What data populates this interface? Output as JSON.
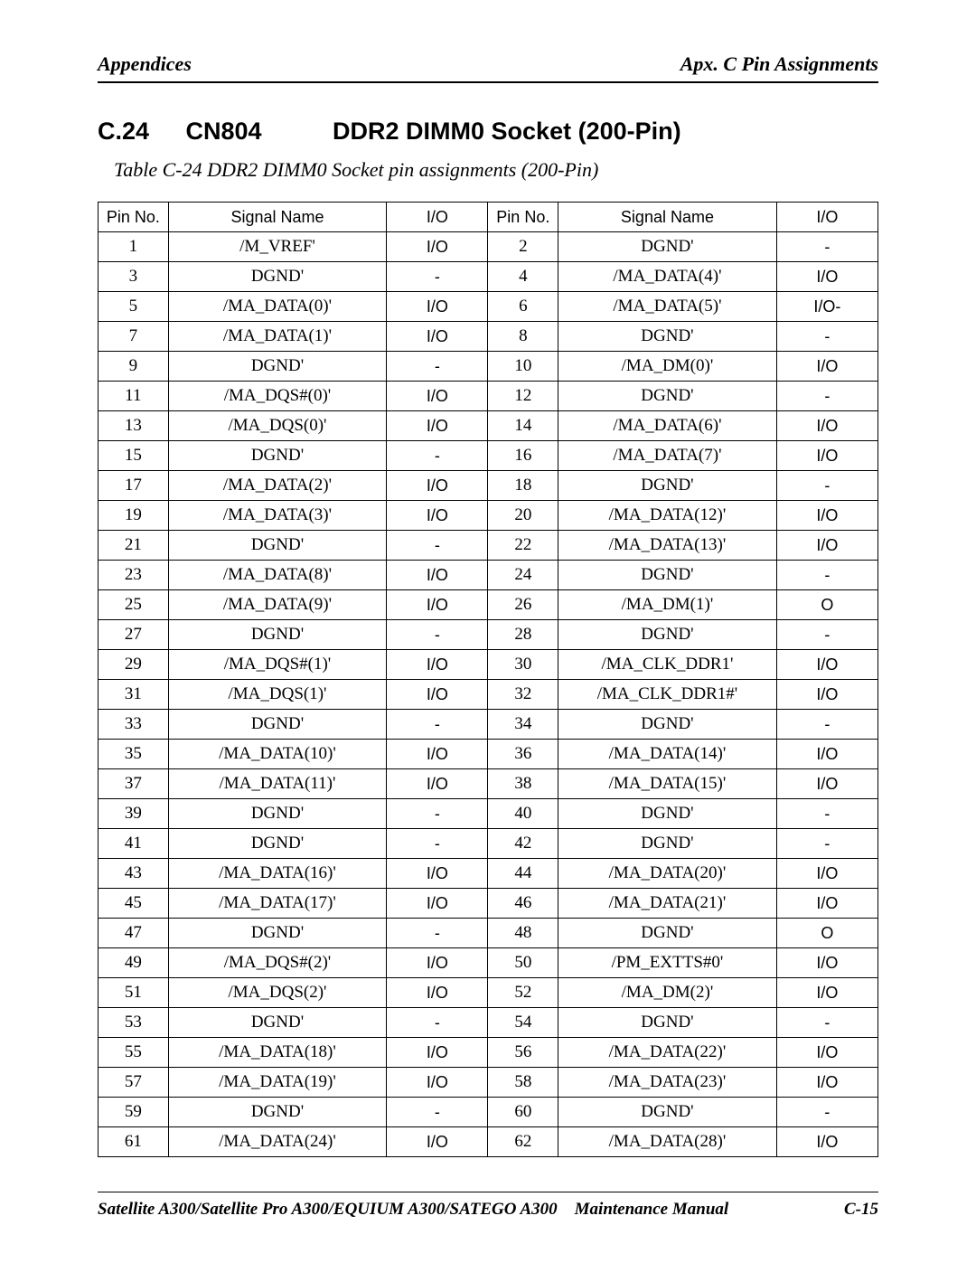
{
  "header": {
    "left": "Appendices",
    "right": "Apx. C  Pin Assignments"
  },
  "heading": {
    "num": "C.24",
    "code": "CN804",
    "title": "DDR2 DIMM0 Socket (200-Pin)"
  },
  "caption": "Table C-24   DDR2 DIMM0  Socket pin assignments (200-Pin)",
  "columns": [
    "Pin No.",
    "Signal Name",
    "I/O",
    "Pin No.",
    "Signal Name",
    "I/O"
  ],
  "rows": [
    [
      "1",
      "/M_VREF'",
      "I/O",
      "2",
      "DGND'",
      "-"
    ],
    [
      "3",
      "DGND'",
      "-",
      "4",
      "/MA_DATA(4)'",
      "I/O"
    ],
    [
      "5",
      "/MA_DATA(0)'",
      "I/O",
      "6",
      "/MA_DATA(5)'",
      "I/O-"
    ],
    [
      "7",
      "/MA_DATA(1)'",
      "I/O",
      "8",
      "DGND'",
      "-"
    ],
    [
      "9",
      "DGND'",
      "-",
      "10",
      "/MA_DM(0)'",
      "I/O"
    ],
    [
      "11",
      "/MA_DQS#(0)'",
      "I/O",
      "12",
      "DGND'",
      "-"
    ],
    [
      "13",
      "/MA_DQS(0)'",
      "I/O",
      "14",
      "/MA_DATA(6)'",
      "I/O"
    ],
    [
      "15",
      "DGND'",
      "-",
      "16",
      "/MA_DATA(7)'",
      "I/O"
    ],
    [
      "17",
      "/MA_DATA(2)'",
      "I/O",
      "18",
      "DGND'",
      "-"
    ],
    [
      "19",
      "/MA_DATA(3)'",
      "I/O",
      "20",
      "/MA_DATA(12)'",
      "I/O"
    ],
    [
      "21",
      "DGND'",
      "-",
      "22",
      "/MA_DATA(13)'",
      "I/O"
    ],
    [
      "23",
      "/MA_DATA(8)'",
      "I/O",
      "24",
      "DGND'",
      "-"
    ],
    [
      "25",
      "/MA_DATA(9)'",
      "I/O",
      "26",
      "/MA_DM(1)'",
      "O"
    ],
    [
      "27",
      "DGND'",
      "-",
      "28",
      "DGND'",
      "-"
    ],
    [
      "29",
      "/MA_DQS#(1)'",
      "I/O",
      "30",
      "/MA_CLK_DDR1'",
      "I/O"
    ],
    [
      "31",
      "/MA_DQS(1)'",
      "I/O",
      "32",
      "/MA_CLK_DDR1#'",
      "I/O"
    ],
    [
      "33",
      "DGND'",
      "-",
      "34",
      "DGND'",
      "-"
    ],
    [
      "35",
      "/MA_DATA(10)'",
      "I/O",
      "36",
      "/MA_DATA(14)'",
      "I/O"
    ],
    [
      "37",
      "/MA_DATA(11)'",
      "I/O",
      "38",
      "/MA_DATA(15)'",
      "I/O"
    ],
    [
      "39",
      "DGND'",
      "-",
      "40",
      "DGND'",
      "-"
    ],
    [
      "41",
      "DGND'",
      "-",
      "42",
      "DGND'",
      "-"
    ],
    [
      "43",
      "/MA_DATA(16)'",
      "I/O",
      "44",
      "/MA_DATA(20)'",
      "I/O"
    ],
    [
      "45",
      "/MA_DATA(17)'",
      "I/O",
      "46",
      "/MA_DATA(21)'",
      "I/O"
    ],
    [
      "47",
      "DGND'",
      "-",
      "48",
      "DGND'",
      "O"
    ],
    [
      "49",
      "/MA_DQS#(2)'",
      "I/O",
      "50",
      "/PM_EXTTS#0'",
      "I/O"
    ],
    [
      "51",
      "/MA_DQS(2)'",
      "I/O",
      "52",
      "/MA_DM(2)'",
      "I/O"
    ],
    [
      "53",
      "DGND'",
      "-",
      "54",
      "DGND'",
      "-"
    ],
    [
      "55",
      "/MA_DATA(18)'",
      "I/O",
      "56",
      "/MA_DATA(22)'",
      "I/O"
    ],
    [
      "57",
      "/MA_DATA(19)'",
      "I/O",
      "58",
      "/MA_DATA(23)'",
      "I/O"
    ],
    [
      "59",
      "DGND'",
      "-",
      "60",
      "DGND'",
      "-"
    ],
    [
      "61",
      "/MA_DATA(24)'",
      "I/O",
      "62",
      "/MA_DATA(28)'",
      "I/O"
    ]
  ],
  "footer": {
    "title": "Satellite A300/Satellite Pro A300/EQUIUM A300/SATEGO A300",
    "mid": "Maintenance Manual",
    "page": "C-15"
  }
}
